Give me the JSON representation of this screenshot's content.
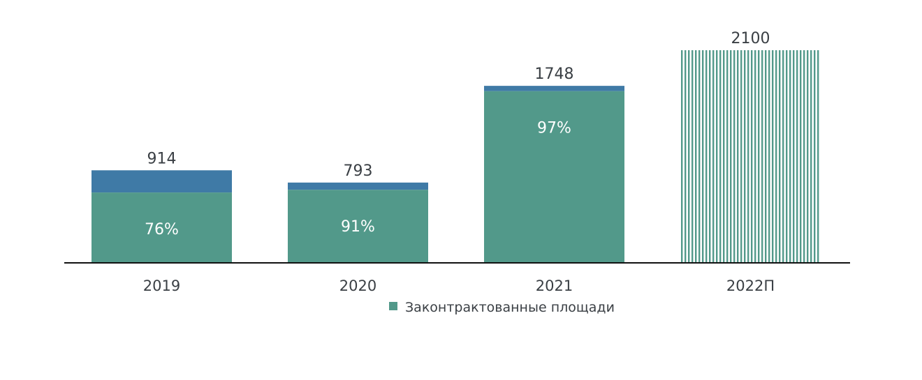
{
  "chart_data": {
    "type": "bar",
    "stacked": true,
    "categories": [
      "2019",
      "2020",
      "2021",
      "2022П"
    ],
    "totals": [
      914,
      793,
      1748,
      2100
    ],
    "total_labels": [
      "914",
      "793",
      "1748",
      "2100"
    ],
    "contracted_share_pct": [
      76,
      91,
      97,
      null
    ],
    "pct_labels": [
      "76%",
      "91%",
      "97%",
      ""
    ],
    "forecast": [
      false,
      false,
      false,
      true
    ],
    "legend": [
      "Законтрактованные площади"
    ],
    "legend_placement": "bottom-center",
    "ylim": [
      0,
      2100
    ],
    "grid": false,
    "colors": {
      "contracted": "#52998a",
      "remainder": "#3f7aa6",
      "axis": "#111111",
      "text": "#3a3f44"
    }
  }
}
